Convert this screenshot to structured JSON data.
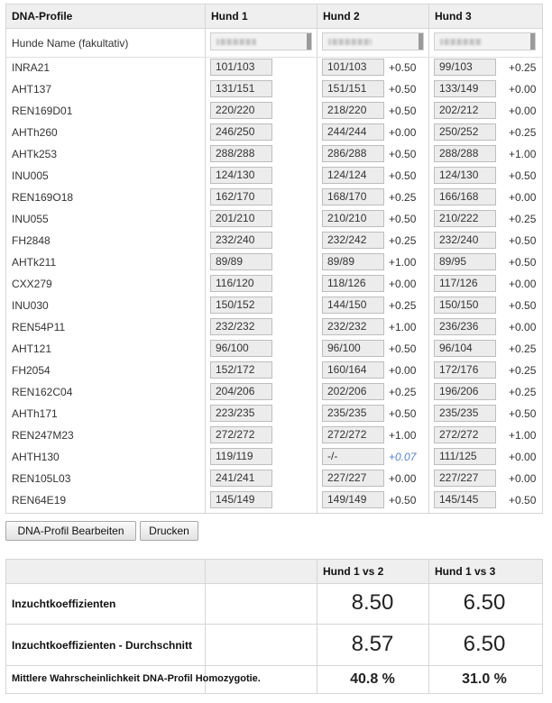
{
  "dna_table": {
    "header": {
      "profile": "DNA-Profile",
      "dog1": "Hund 1",
      "dog2": "Hund 2",
      "dog3": "Hund 3"
    },
    "name_label": "Hunde Name (fakultativ)",
    "rows": [
      {
        "locus": "INRA21",
        "d1": "101/103",
        "d2": "101/103",
        "d2_delta": "+0.50",
        "d3": "99/103",
        "d3_delta": "+0.25"
      },
      {
        "locus": "AHT137",
        "d1": "131/151",
        "d2": "151/151",
        "d2_delta": "+0.50",
        "d3": "133/149",
        "d3_delta": "+0.00"
      },
      {
        "locus": "REN169D01",
        "d1": "220/220",
        "d2": "218/220",
        "d2_delta": "+0.50",
        "d3": "202/212",
        "d3_delta": "+0.00"
      },
      {
        "locus": "AHTh260",
        "d1": "246/250",
        "d2": "244/244",
        "d2_delta": "+0.00",
        "d3": "250/252",
        "d3_delta": "+0.25"
      },
      {
        "locus": "AHTk253",
        "d1": "288/288",
        "d2": "286/288",
        "d2_delta": "+0.50",
        "d3": "288/288",
        "d3_delta": "+1.00"
      },
      {
        "locus": "INU005",
        "d1": "124/130",
        "d2": "124/124",
        "d2_delta": "+0.50",
        "d3": "124/130",
        "d3_delta": "+0.50"
      },
      {
        "locus": "REN169O18",
        "d1": "162/170",
        "d2": "168/170",
        "d2_delta": "+0.25",
        "d3": "166/168",
        "d3_delta": "+0.00"
      },
      {
        "locus": "INU055",
        "d1": "201/210",
        "d2": "210/210",
        "d2_delta": "+0.50",
        "d3": "210/222",
        "d3_delta": "+0.25"
      },
      {
        "locus": "FH2848",
        "d1": "232/240",
        "d2": "232/242",
        "d2_delta": "+0.25",
        "d3": "232/240",
        "d3_delta": "+0.50"
      },
      {
        "locus": "AHTk211",
        "d1": "89/89",
        "d2": "89/89",
        "d2_delta": "+1.00",
        "d3": "89/95",
        "d3_delta": "+0.50"
      },
      {
        "locus": "CXX279",
        "d1": "116/120",
        "d2": "118/126",
        "d2_delta": "+0.00",
        "d3": "117/126",
        "d3_delta": "+0.00"
      },
      {
        "locus": "INU030",
        "d1": "150/152",
        "d2": "144/150",
        "d2_delta": "+0.25",
        "d3": "150/150",
        "d3_delta": "+0.50"
      },
      {
        "locus": "REN54P11",
        "d1": "232/232",
        "d2": "232/232",
        "d2_delta": "+1.00",
        "d3": "236/236",
        "d3_delta": "+0.00"
      },
      {
        "locus": "AHT121",
        "d1": "96/100",
        "d2": "96/100",
        "d2_delta": "+0.50",
        "d3": "96/104",
        "d3_delta": "+0.25"
      },
      {
        "locus": "FH2054",
        "d1": "152/172",
        "d2": "160/164",
        "d2_delta": "+0.00",
        "d3": "172/176",
        "d3_delta": "+0.25"
      },
      {
        "locus": "REN162C04",
        "d1": "204/206",
        "d2": "202/206",
        "d2_delta": "+0.25",
        "d3": "196/206",
        "d3_delta": "+0.25"
      },
      {
        "locus": "AHTh171",
        "d1": "223/235",
        "d2": "235/235",
        "d2_delta": "+0.50",
        "d3": "235/235",
        "d3_delta": "+0.50"
      },
      {
        "locus": "REN247M23",
        "d1": "272/272",
        "d2": "272/272",
        "d2_delta": "+1.00",
        "d3": "272/272",
        "d3_delta": "+1.00"
      },
      {
        "locus": "AHTH130",
        "d1": "119/119",
        "d2": "-/-",
        "d2_delta": "+0.07",
        "d2_delta_style": "blue",
        "d3": "111/125",
        "d3_delta": "+0.00"
      },
      {
        "locus": "REN105L03",
        "d1": "241/241",
        "d2": "227/227",
        "d2_delta": "+0.00",
        "d3": "227/227",
        "d3_delta": "+0.00"
      },
      {
        "locus": "REN64E19",
        "d1": "145/149",
        "d2": "149/149",
        "d2_delta": "+0.50",
        "d3": "145/145",
        "d3_delta": "+0.50"
      }
    ]
  },
  "buttons": {
    "edit": "DNA-Profil Bearbeiten",
    "print": "Drucken"
  },
  "stats": {
    "header": {
      "h1v2": "Hund 1 vs 2",
      "h1v3": "Hund 1 vs 3"
    },
    "rows": [
      {
        "label": "Inzuchtkoeffizienten",
        "v12": "8.50",
        "v13": "6.50"
      },
      {
        "label": "Inzuchtkoeffizienten - Durchschnitt",
        "v12": "8.57",
        "v13": "6.50"
      },
      {
        "label": "Mittlere Wahrscheinlichkeit DNA-Profil Homozygotie.",
        "v12": "40.8 %",
        "v13": "31.0 %"
      }
    ]
  },
  "colors": {
    "header_bg": "#efefef",
    "cell_bg": "#ececec",
    "border": "#d6d6d6",
    "missing_delta": "#5a82c8"
  }
}
